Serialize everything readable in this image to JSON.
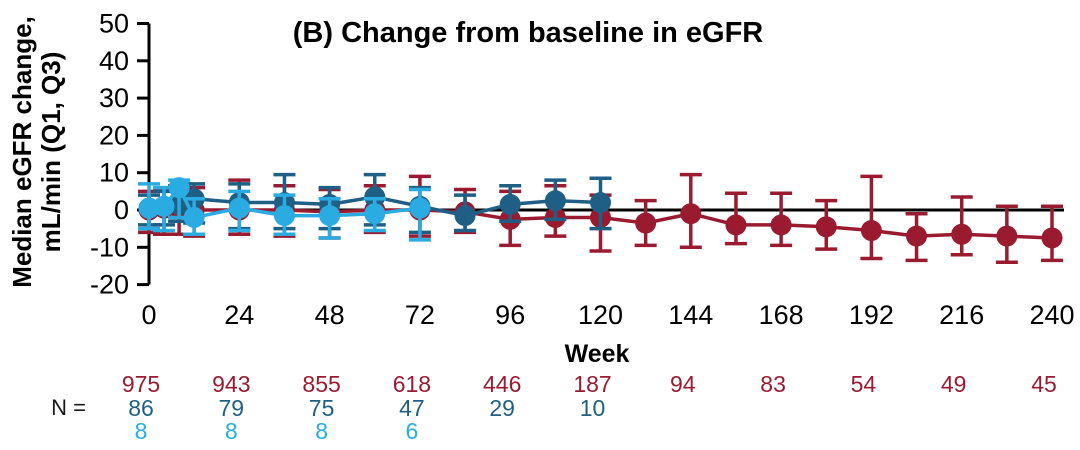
{
  "chart_data": {
    "type": "line",
    "title": "(B) Change from baseline in eGFR",
    "xlabel": "Week",
    "ylabel_line1": "Median eGFR change,",
    "ylabel_line2": "mL/min (Q1, Q3)",
    "x_ticks": [
      0,
      24,
      48,
      72,
      96,
      120,
      144,
      168,
      192,
      216,
      240
    ],
    "y_ticks": [
      50,
      40,
      30,
      20,
      10,
      0,
      -10,
      -20
    ],
    "xlim": [
      0,
      240
    ],
    "ylim": [
      -20,
      50
    ],
    "grid": false,
    "legend": "none",
    "zero_reference_line": true,
    "error_bars": "Q1-Q3 interquartile range",
    "series": [
      {
        "name": "series-dark-red",
        "color": "#9A1B30",
        "marker": "circle",
        "x": [
          0,
          4,
          8,
          12,
          24,
          36,
          48,
          60,
          72,
          84,
          96,
          108,
          120,
          132,
          144,
          156,
          168,
          180,
          192,
          204,
          216,
          228,
          240
        ],
        "y": [
          0,
          0.5,
          0.5,
          0,
          0,
          0,
          -0.5,
          0,
          0,
          -0.5,
          -2.5,
          -2,
          -2,
          -3.5,
          -1,
          -4,
          -4,
          -4.5,
          -5.5,
          -7,
          -6.5,
          -7,
          -7.5
        ],
        "q3": [
          5,
          5.5,
          6,
          6,
          8,
          6.5,
          5.5,
          6.5,
          9,
          5.5,
          5,
          6.5,
          4,
          2.5,
          9.5,
          4.5,
          4.5,
          2.5,
          9,
          -1,
          3.5,
          1,
          1
        ],
        "q1": [
          -6,
          -6.5,
          -6.5,
          -7,
          -6.5,
          -7,
          -7.5,
          -6,
          -7,
          -6,
          -9.5,
          -7,
          -11,
          -9.5,
          -10,
          -9,
          -9.5,
          -10.5,
          -13,
          -13.5,
          -12,
          -14,
          -13.5
        ]
      },
      {
        "name": "series-dark-blue",
        "color": "#1F5F85",
        "marker": "circle",
        "x": [
          0,
          4,
          8,
          12,
          24,
          36,
          48,
          60,
          72,
          84,
          96,
          108,
          120
        ],
        "y": [
          0.5,
          1,
          1.5,
          3,
          2,
          2,
          1.5,
          3.5,
          1,
          -1.5,
          1.5,
          2.5,
          2
        ],
        "q3": [
          4,
          5,
          6.5,
          7,
          7,
          9.5,
          6,
          9.5,
          6,
          4,
          6.5,
          8,
          8.5
        ],
        "q1": [
          -4,
          -4,
          -3,
          -3.5,
          -5,
          -5,
          -5,
          -4,
          -6,
          -5.5,
          -3,
          -2.5,
          -5
        ]
      },
      {
        "name": "series-light-blue",
        "color": "#2AACE2",
        "marker": "circle",
        "x": [
          0,
          4,
          8,
          12,
          24,
          36,
          48,
          60,
          72
        ],
        "y": [
          0.5,
          1,
          6,
          -2,
          0.5,
          -1.5,
          -1.5,
          -1,
          0.5
        ],
        "q3": [
          7,
          6,
          8,
          3,
          5,
          4,
          3,
          3,
          5.5
        ],
        "q1": [
          -5,
          -5.5,
          -2,
          -6.5,
          -5.5,
          -6.5,
          -7.5,
          -5.5,
          -8
        ]
      }
    ],
    "n_table": {
      "label": "N =",
      "rows": [
        {
          "series": "series-dark-red",
          "color": "#9A1B30",
          "weeks": [
            0,
            24,
            48,
            72,
            96,
            120,
            144,
            168,
            192,
            216,
            240
          ],
          "values": [
            975,
            943,
            855,
            618,
            446,
            187,
            94,
            83,
            54,
            49,
            45
          ]
        },
        {
          "series": "series-dark-blue",
          "color": "#1F5F85",
          "weeks": [
            0,
            24,
            48,
            72,
            96,
            120
          ],
          "values": [
            86,
            79,
            75,
            47,
            29,
            10
          ]
        },
        {
          "series": "series-light-blue",
          "color": "#2AACE2",
          "weeks": [
            0,
            24,
            48,
            72
          ],
          "values": [
            8,
            8,
            8,
            6
          ]
        }
      ]
    }
  }
}
